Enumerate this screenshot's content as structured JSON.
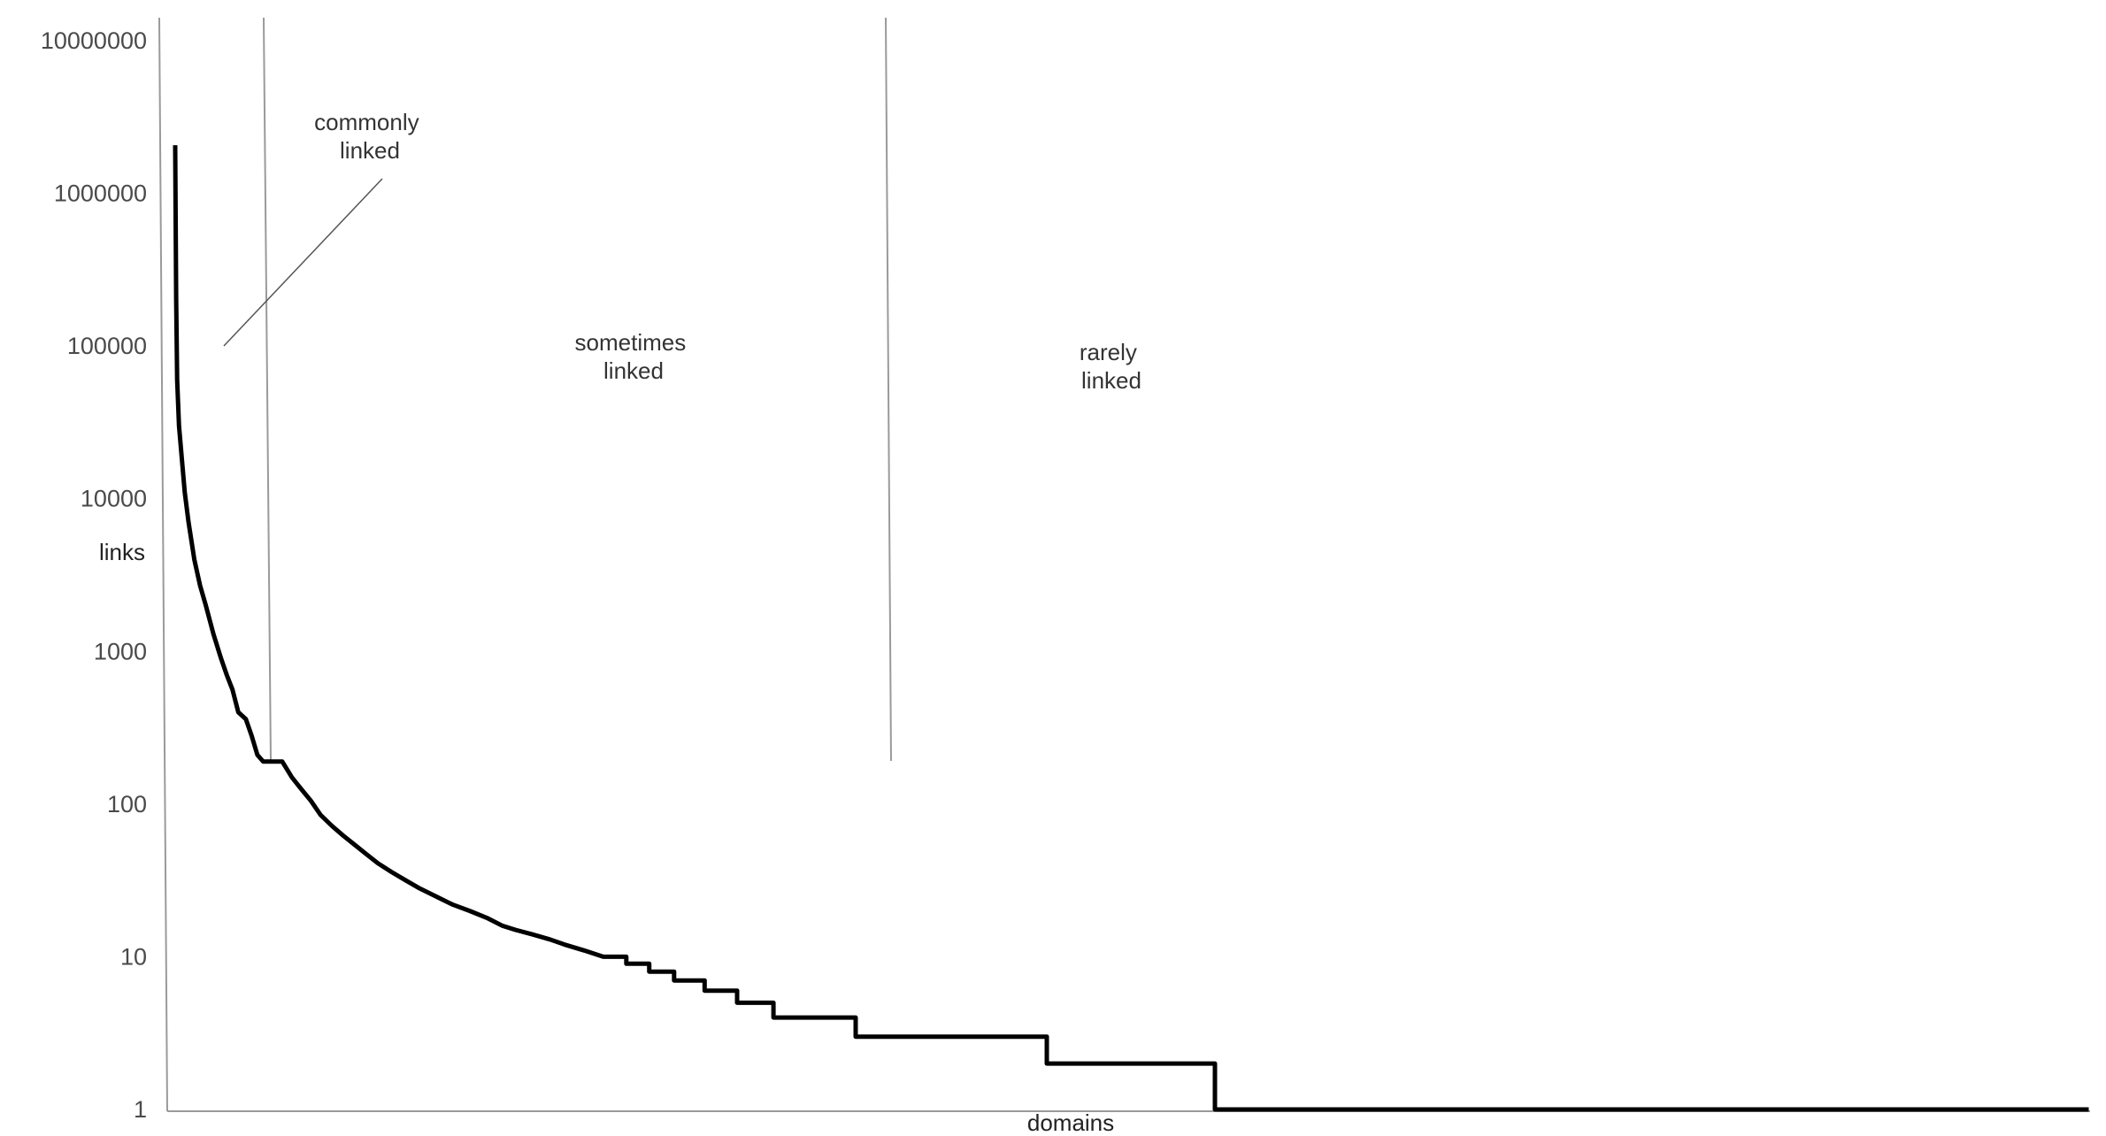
{
  "chart_data": {
    "type": "line",
    "title": "",
    "xlabel": "domains",
    "ylabel": "links",
    "y_scale": "log",
    "ylim": [
      1,
      10000000
    ],
    "y_ticks": [
      "1",
      "10",
      "100",
      "1000",
      "10000",
      "100000",
      "1000000",
      "10000000"
    ],
    "grid": false,
    "legend": "none",
    "line_color": "#000000",
    "annotations": [
      {
        "text": [
          "commonly",
          "linked"
        ]
      },
      {
        "text": [
          "sometimes",
          "linked"
        ]
      },
      {
        "text": [
          "rarely",
          "linked"
        ]
      }
    ],
    "series": [
      {
        "x": [
          0,
          0.05,
          0.1,
          0.2,
          0.35,
          0.5,
          0.7,
          1,
          1.3,
          1.6,
          2,
          2.4,
          2.7,
          3,
          3.3,
          3.7,
          4,
          4.3,
          4.6,
          5,
          5.6,
          6.1,
          6.6,
          7.1,
          7.6,
          8.2,
          8.8,
          9.4,
          10,
          10.6,
          11.3,
          12,
          12.8,
          13.6,
          14.5,
          15.4,
          16.3,
          17.1,
          17.8,
          18.7,
          19.6,
          20.4,
          21.4,
          22.4,
          23.6,
          24.8,
          26.1,
          27.7,
          29.4,
          31.3,
          33.4,
          35.6,
          38.1,
          41.3,
          45.6,
          50.4,
          54.4,
          100
        ],
        "values": [
          2000000,
          200000,
          60000,
          30000,
          18000,
          11000,
          7000,
          4000,
          2700,
          2000,
          1300,
          900,
          700,
          560,
          400,
          360,
          280,
          210,
          190,
          190,
          190,
          150,
          125,
          105,
          85,
          72,
          62,
          54,
          47,
          41,
          36,
          32,
          28,
          25,
          22,
          20,
          18,
          16,
          15,
          14,
          13,
          12,
          11,
          10,
          9,
          8,
          7,
          6,
          5,
          4,
          4,
          3,
          3,
          3,
          2,
          2,
          1,
          1
        ]
      }
    ]
  }
}
